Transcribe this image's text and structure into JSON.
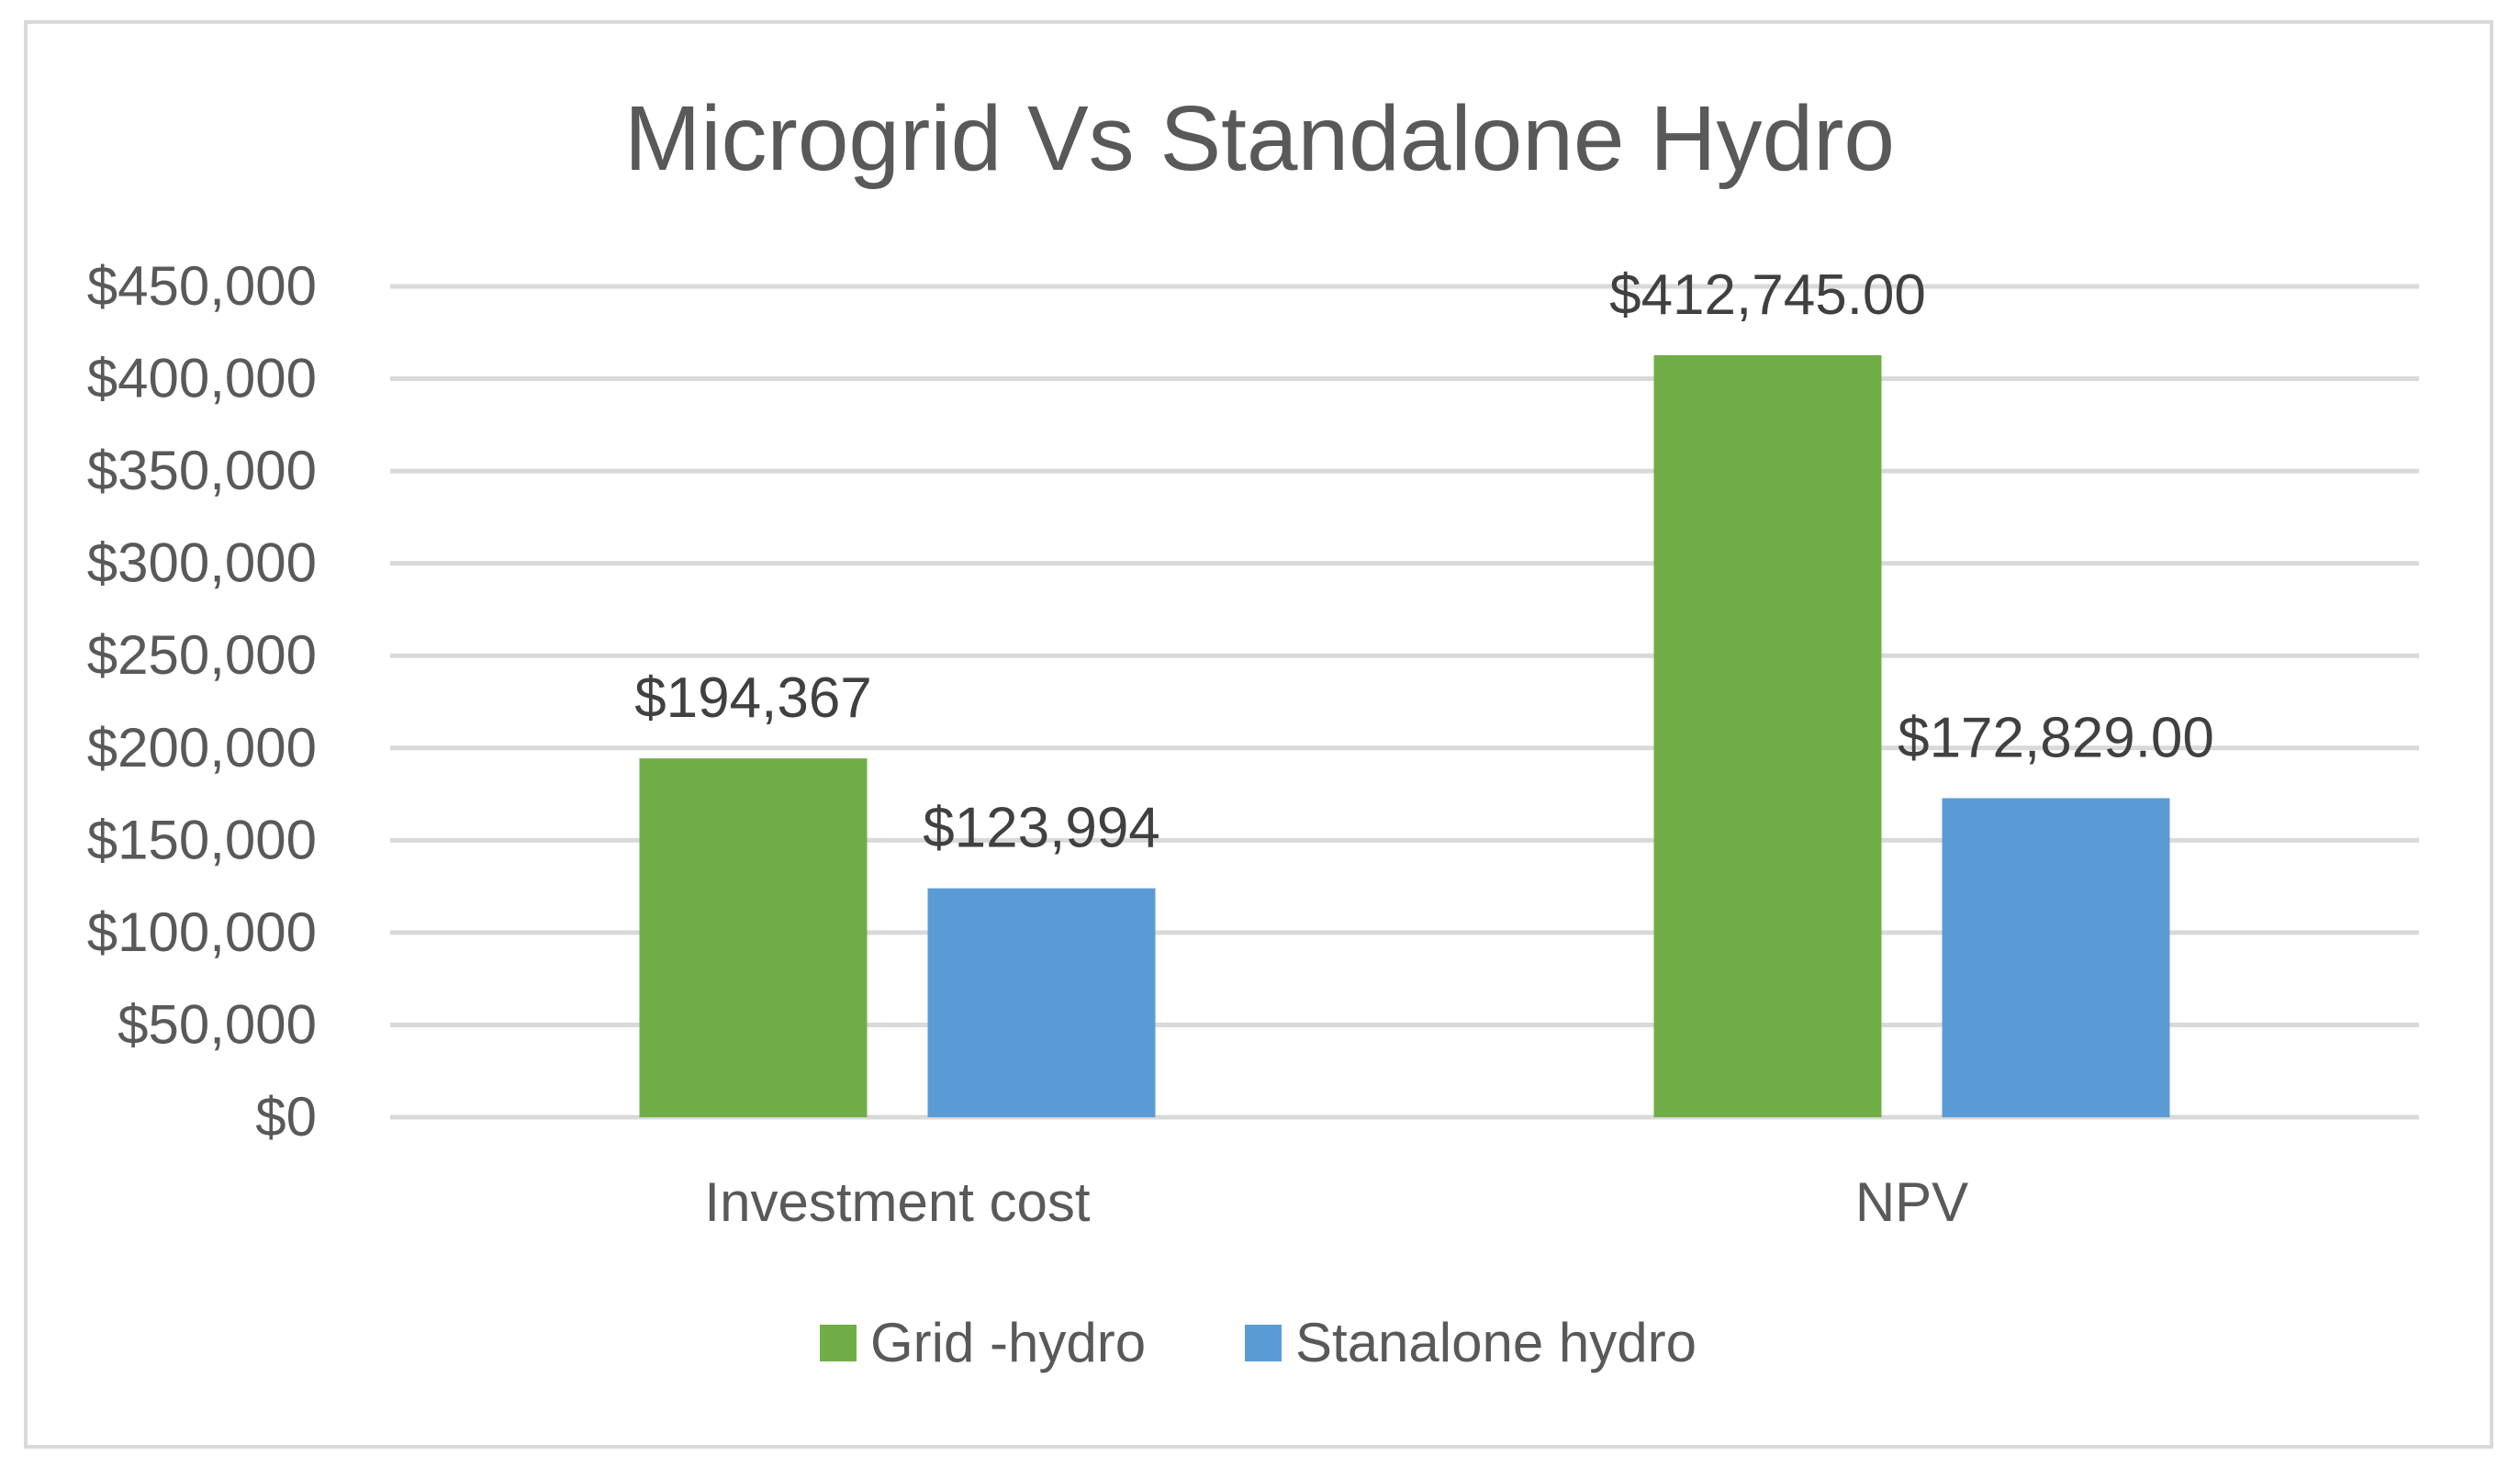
{
  "chart_data": {
    "type": "bar",
    "title": "Microgrid Vs Standalone Hydro",
    "xlabel": "",
    "ylabel": "",
    "ylim": [
      0,
      450000
    ],
    "yticks": [
      0,
      50000,
      100000,
      150000,
      200000,
      250000,
      300000,
      350000,
      400000,
      450000
    ],
    "ytick_labels": [
      "$0",
      "$50,000",
      "$100,000",
      "$150,000",
      "$200,000",
      "$250,000",
      "$300,000",
      "$350,000",
      "$400,000",
      "$450,000"
    ],
    "categories": [
      "Investment cost",
      "NPV"
    ],
    "grid": true,
    "legend_position": "bottom",
    "series": [
      {
        "name": "Grid -hydro",
        "color": "#70ad47",
        "values": [
          194367,
          412745
        ],
        "labels": [
          "$194,367",
          "$412,745.00"
        ]
      },
      {
        "name": "Stanalone hydro",
        "color": "#5b9bd5",
        "values": [
          123994,
          172829
        ],
        "labels": [
          "$123,994",
          "$172,829.00"
        ]
      }
    ]
  }
}
